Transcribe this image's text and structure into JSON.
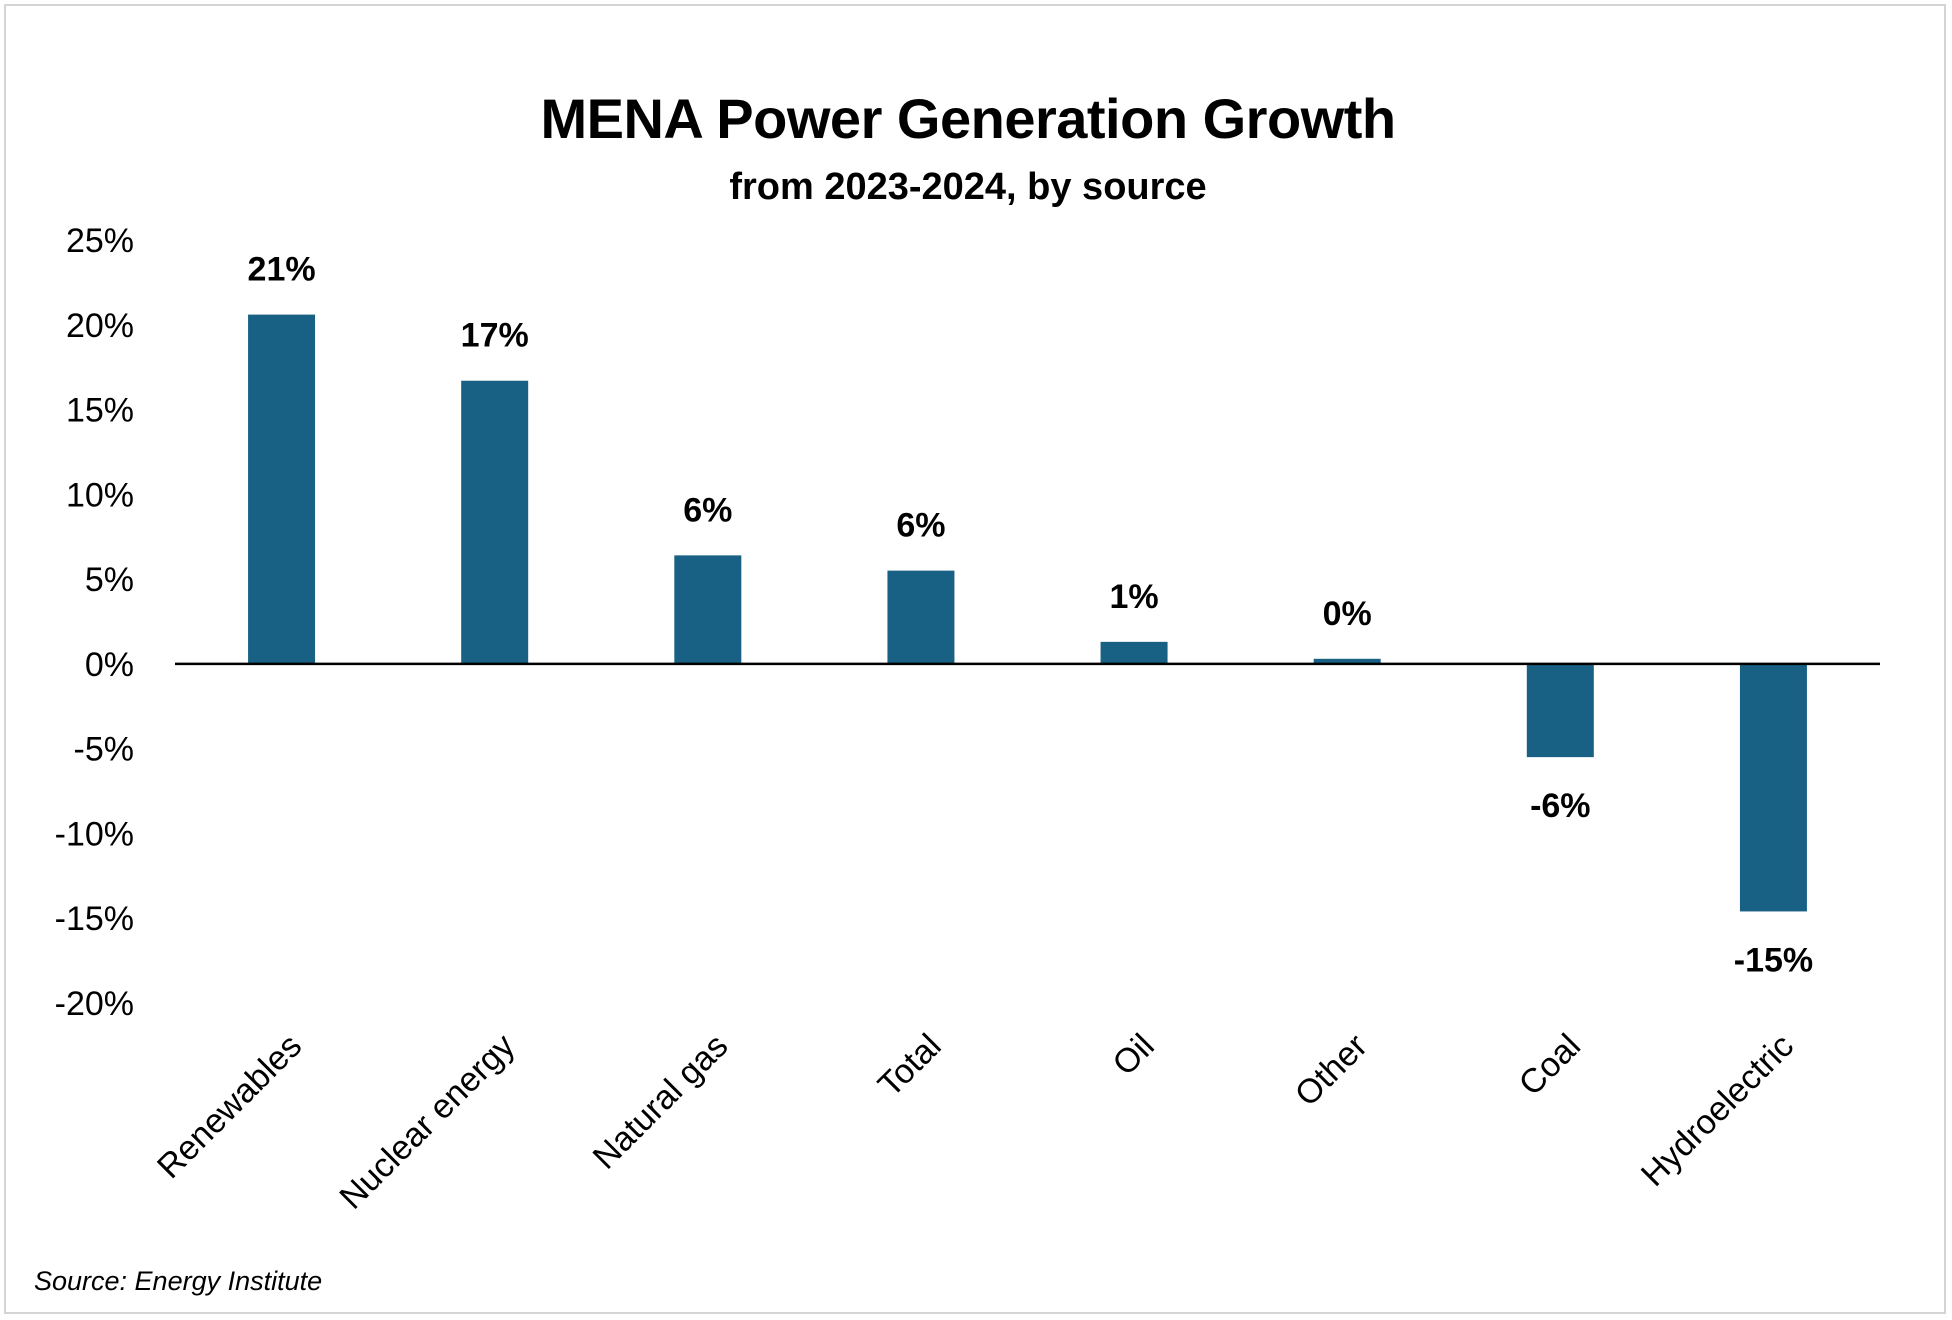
{
  "colors": {
    "bar": "#196085",
    "axis": "#000000",
    "frame": "#d4d4d4"
  },
  "chart_data": {
    "type": "bar",
    "title": "MENA Power Generation Growth",
    "subtitle": "from 2023-2024, by source",
    "categories": [
      "Renewables",
      "Nuclear energy",
      "Natural gas",
      "Total",
      "Oil",
      "Other",
      "Coal",
      "Hydroelectric"
    ],
    "values": [
      20.6,
      16.7,
      6.4,
      5.5,
      1.3,
      0.3,
      -5.5,
      -14.6
    ],
    "data_labels": [
      "21%",
      "17%",
      "6%",
      "6%",
      "1%",
      "0%",
      "-6%",
      "-15%"
    ],
    "ylim": [
      -20,
      25
    ],
    "yticks": [
      25,
      20,
      15,
      10,
      5,
      0,
      -5,
      -10,
      -15,
      -20
    ],
    "ytick_labels": [
      "25%",
      "20%",
      "15%",
      "10%",
      "5%",
      "0%",
      "-5%",
      "-10%",
      "-15%",
      "-20%"
    ],
    "xlabel": "",
    "ylabel": "",
    "grid": false,
    "source": "Source: Energy Institute"
  }
}
